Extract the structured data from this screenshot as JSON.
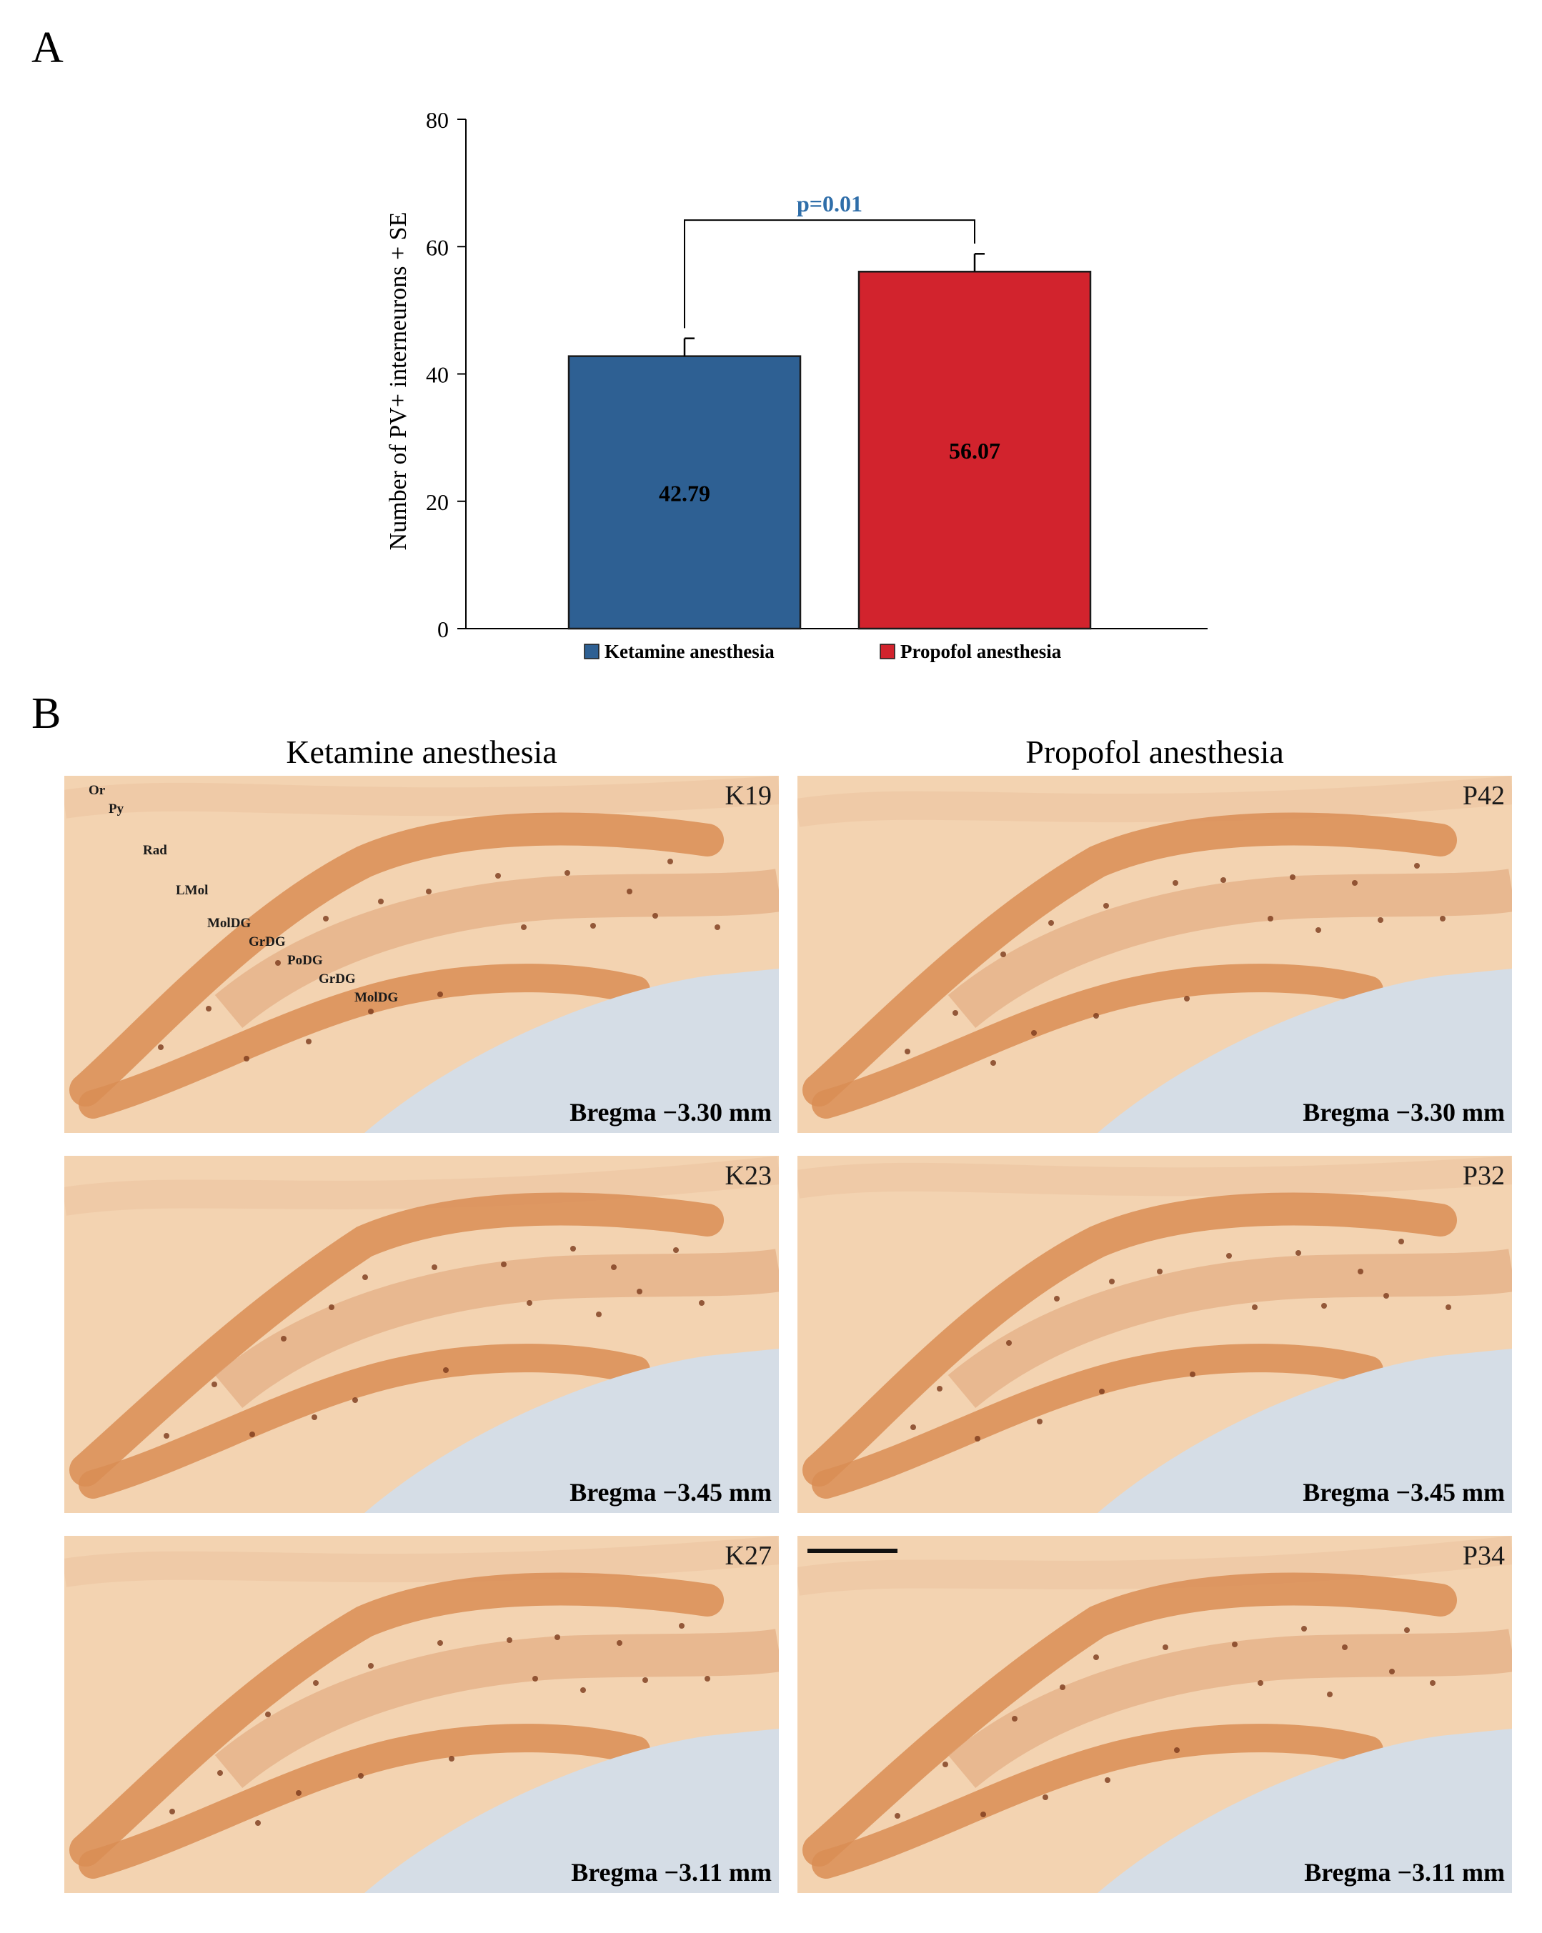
{
  "panels": {
    "a_label": "A",
    "b_label": "B"
  },
  "chart_data": {
    "type": "bar",
    "categories": [
      "Ketamine anesthesia",
      "Propofol anesthesia"
    ],
    "values": [
      42.79,
      56.07
    ],
    "errors": [
      2.8,
      2.8
    ],
    "value_labels": [
      "42.79",
      "56.07"
    ],
    "colors": [
      "#2e6093",
      "#d2232d"
    ],
    "ylabel": "Number of PV+ interneurons + SE",
    "ylim": [
      0,
      80
    ],
    "yticks": [
      0,
      20,
      40,
      60,
      80
    ],
    "grid": false,
    "legend_position": "bottom",
    "annotation": {
      "text": "p=0.01",
      "color": "#2f6ea9"
    }
  },
  "micrographs": {
    "ketamine_title": "Ketamine anesthesia",
    "propofol_title": "Propofol anesthesia",
    "items": [
      {
        "id": "K19",
        "bregma": "Bregma −3.30 mm"
      },
      {
        "id": "P42",
        "bregma": "Bregma −3.30 mm"
      },
      {
        "id": "K23",
        "bregma": "Bregma −3.45 mm"
      },
      {
        "id": "P32",
        "bregma": "Bregma −3.45 mm"
      },
      {
        "id": "K27",
        "bregma": "Bregma −3.11 mm"
      },
      {
        "id": "P34",
        "bregma": "Bregma −3.11 mm"
      }
    ],
    "layers": [
      "Or",
      "Py",
      "Rad",
      "LMol",
      "MolDG",
      "GrDG",
      "PoDG",
      "GrDG",
      "MolDG"
    ],
    "colors": {
      "tissue": "#f3d3b1",
      "stain": "#d98d55",
      "background": "#d5dde6"
    }
  }
}
